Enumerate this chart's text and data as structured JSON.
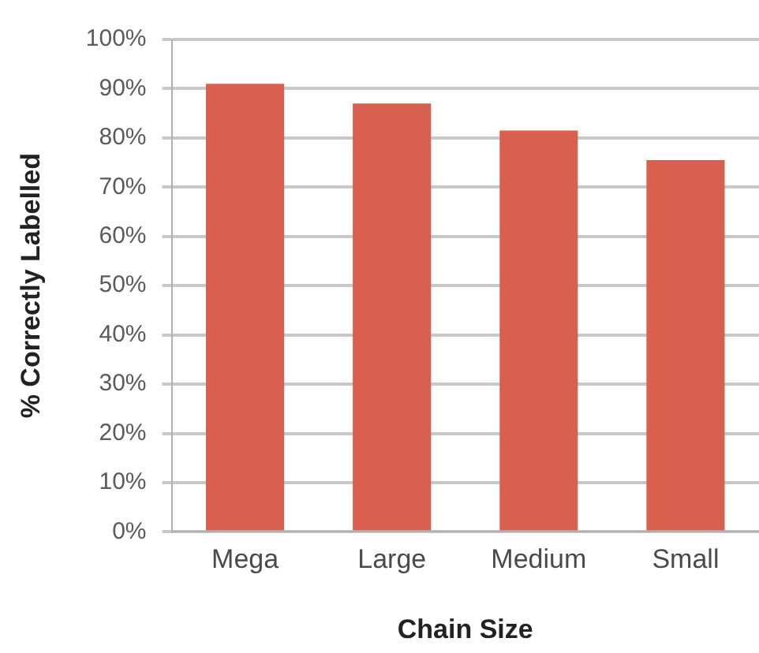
{
  "chart_data": {
    "type": "bar",
    "xlabel": "Chain Size",
    "ylabel": "% Correctly Labelled",
    "categories": [
      "Mega",
      "Large",
      "Medium",
      "Small"
    ],
    "values": [
      91,
      87,
      81.5,
      75.5
    ],
    "color": "#d9604f",
    "ylim": [
      0,
      100
    ],
    "yticks": [
      {
        "value": 0,
        "label": "0%"
      },
      {
        "value": 10,
        "label": "10%"
      },
      {
        "value": 20,
        "label": "20%"
      },
      {
        "value": 30,
        "label": "30%"
      },
      {
        "value": 40,
        "label": "40%"
      },
      {
        "value": 50,
        "label": "50%"
      },
      {
        "value": 60,
        "label": "60%"
      },
      {
        "value": 70,
        "label": "70%"
      },
      {
        "value": 80,
        "label": "80%"
      },
      {
        "value": 90,
        "label": "90%"
      },
      {
        "value": 100,
        "label": "100%"
      }
    ],
    "grid": "y"
  }
}
